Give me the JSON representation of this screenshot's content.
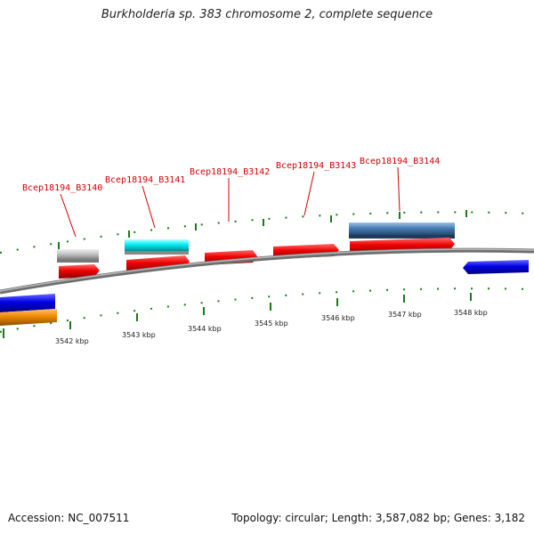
{
  "title": "Burkholderia sp. 383 chromosome 2, complete sequence",
  "footer": {
    "accession": "Accession: NC_007511",
    "summary": "Topology: circular; Length: 3,587,082 bp; Genes: 3,182"
  },
  "gene_labels": [
    "Bcep18194_B3140",
    "Bcep18194_B3141",
    "Bcep18194_B3142",
    "Bcep18194_B3143",
    "Bcep18194_B3144"
  ],
  "kbp_labels": [
    "3542 kbp",
    "3543 kbp",
    "3544 kbp",
    "3545 kbp",
    "3546 kbp",
    "3547 kbp",
    "3548 kbp"
  ],
  "colors": {
    "gene_label": "#d20000",
    "tick": "#1a7a1a",
    "backbone": "#808080",
    "red_gene": "#e80000",
    "blue_gene": "#0000dd",
    "orange_gene": "#f08a00",
    "cyan_gene": "#00e8f0",
    "grey_gene": "#c0c0c0",
    "steel_gene": "#4a7fb5"
  }
}
